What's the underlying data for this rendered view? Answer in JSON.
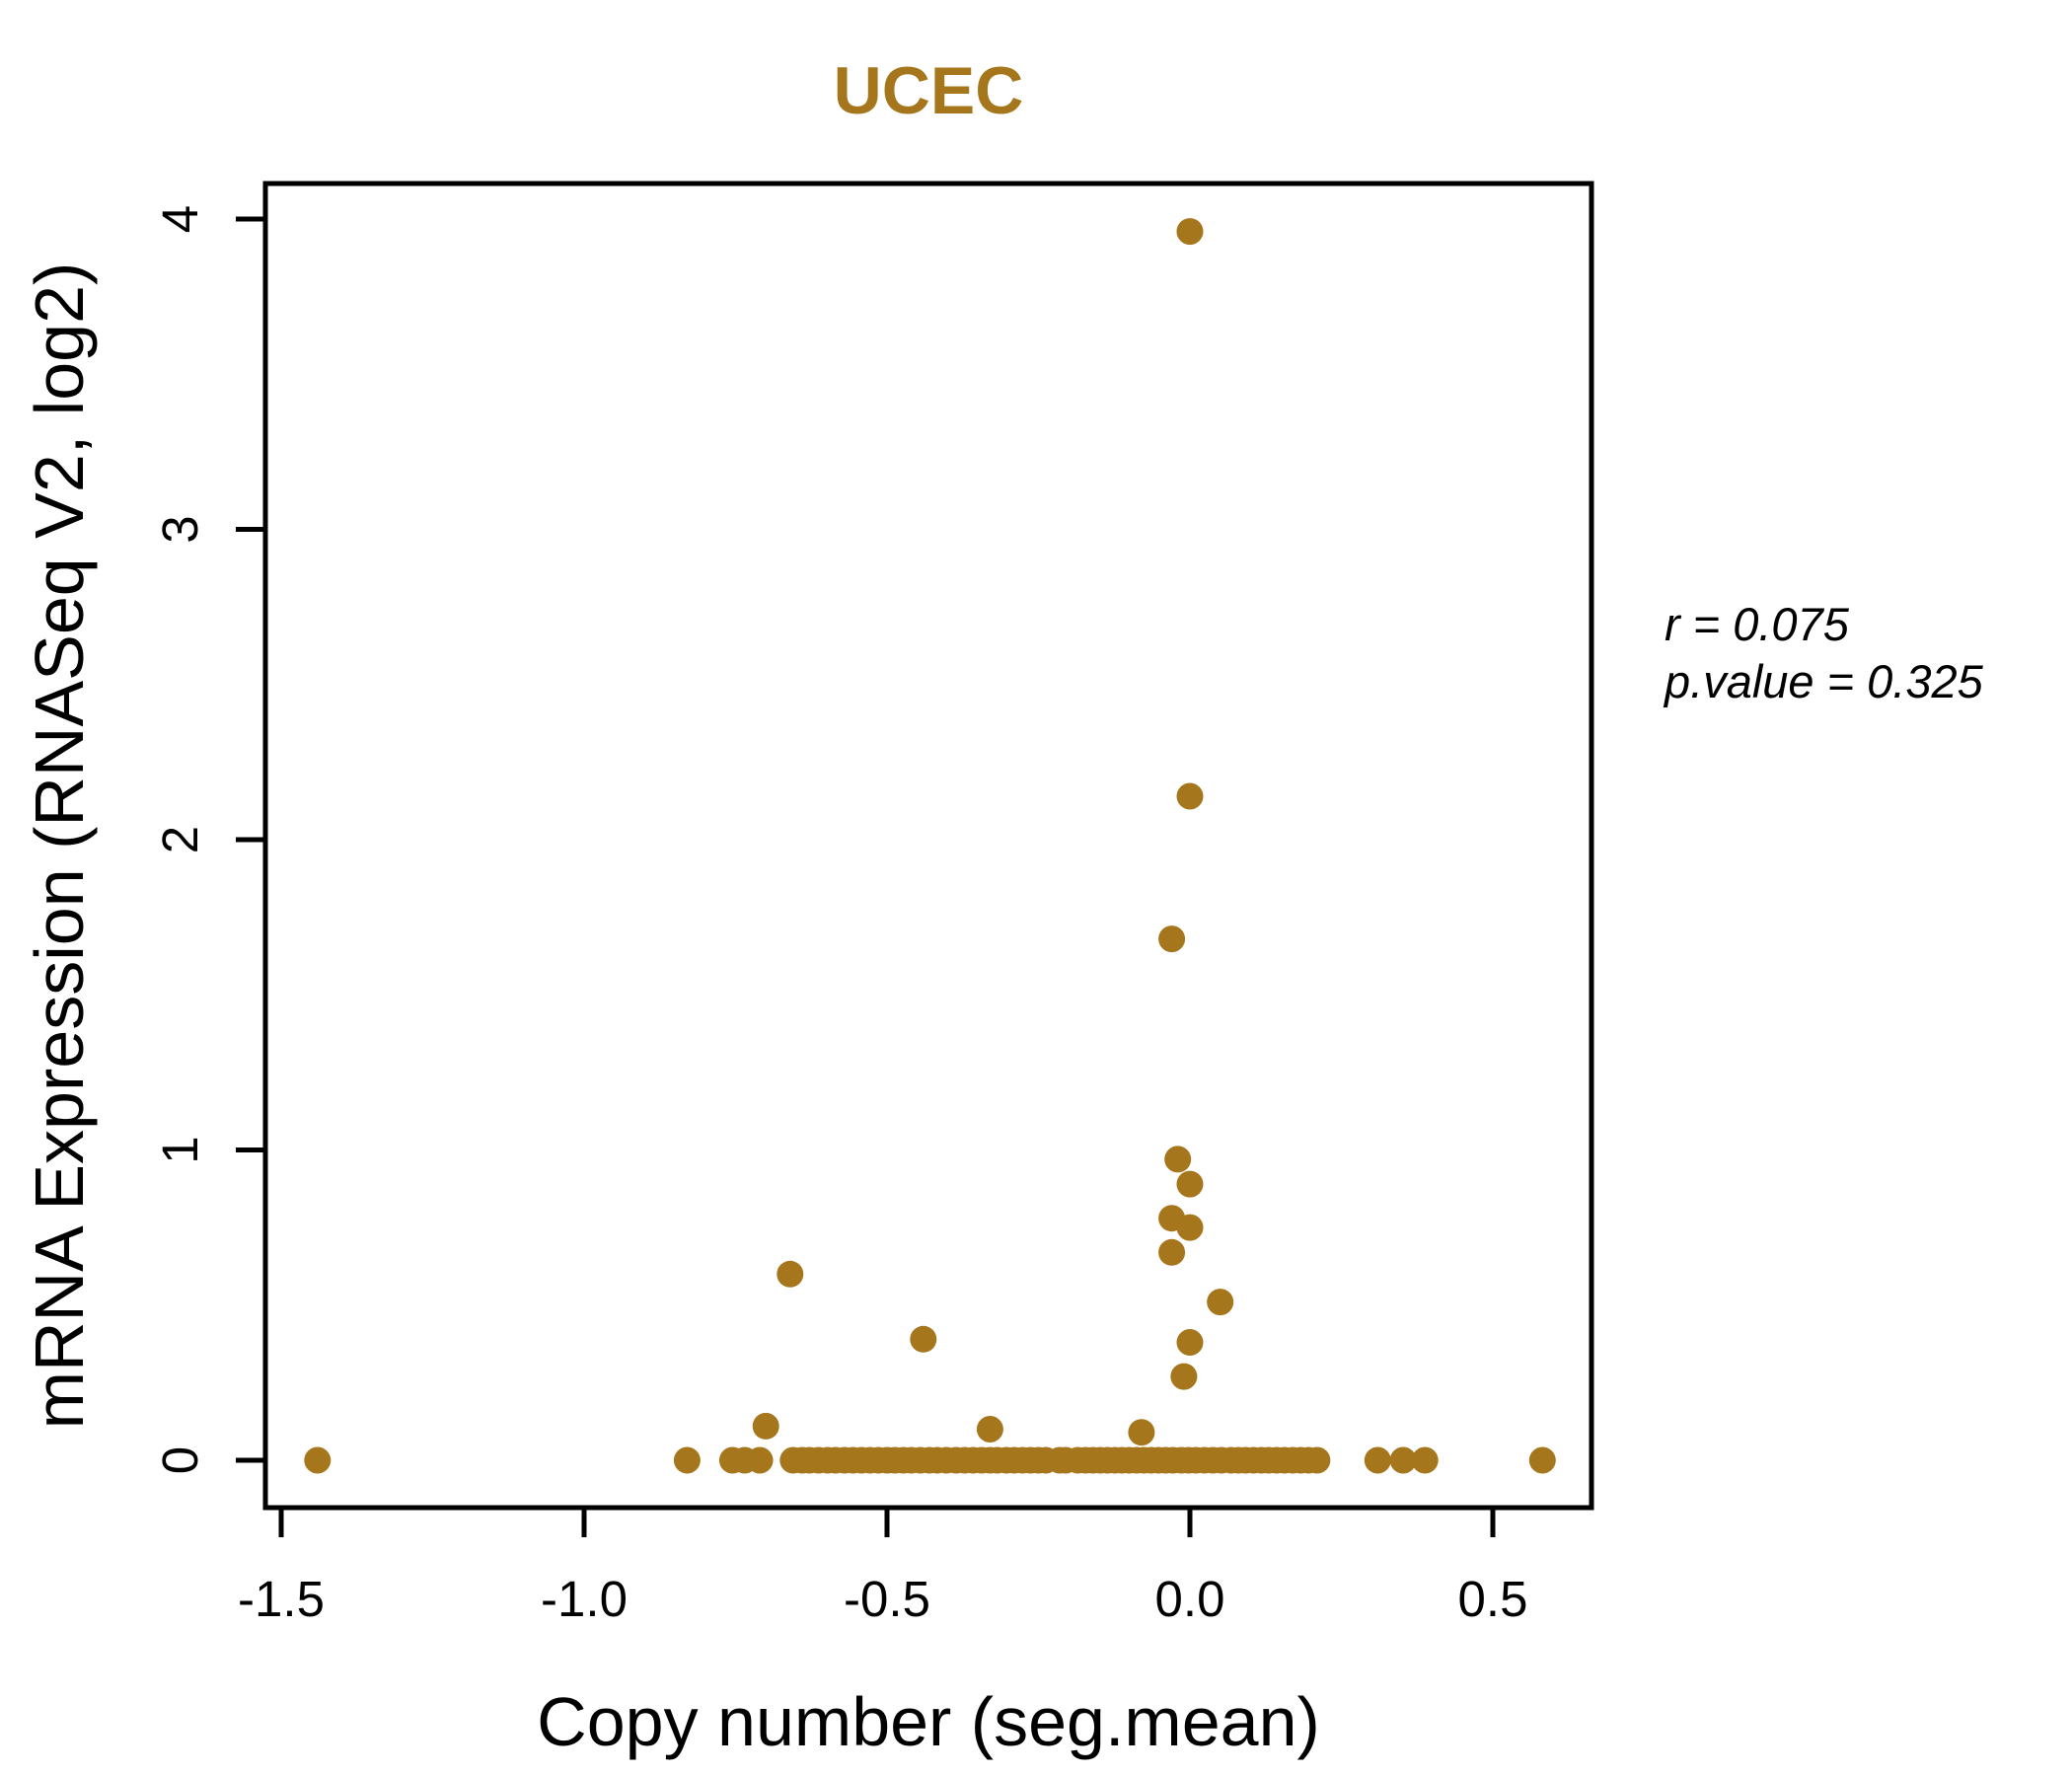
{
  "title": "UCEC",
  "colors": {
    "accent": "#A6761D",
    "point": "#A6761D",
    "axis": "#000000",
    "background": "#ffffff"
  },
  "stats": {
    "r_label": "r = 0.075",
    "p_label": "p.value = 0.325"
  },
  "chart_data": {
    "type": "scatter",
    "title": "UCEC",
    "xlabel": "Copy number (seg.mean)",
    "ylabel": "mRNA Expression (RNASeq V2, log2)",
    "xlim": [
      -1.53,
      0.66
    ],
    "ylim": [
      -0.15,
      4.12
    ],
    "grid": false,
    "legend": "none",
    "x_ticks": [
      -1.5,
      -1.0,
      -0.5,
      0.0,
      0.5
    ],
    "x_tick_labels": [
      "-1.5",
      "-1.0",
      "-0.5",
      "0.0",
      "0.5"
    ],
    "y_ticks": [
      0,
      1,
      2,
      3,
      4
    ],
    "y_tick_labels": [
      "0",
      "1",
      "2",
      "3",
      "4"
    ],
    "annotations": [
      "r = 0.075",
      "p.value = 0.325"
    ],
    "correlation_r": 0.075,
    "p_value": 0.325,
    "points": [
      [
        0.0,
        3.96
      ],
      [
        0.0,
        2.14
      ],
      [
        -0.03,
        1.68
      ],
      [
        -0.02,
        0.97
      ],
      [
        0.0,
        0.89
      ],
      [
        -0.03,
        0.78
      ],
      [
        0.0,
        0.75
      ],
      [
        -0.03,
        0.67
      ],
      [
        -0.66,
        0.6
      ],
      [
        0.05,
        0.51
      ],
      [
        -0.44,
        0.39
      ],
      [
        0.0,
        0.38
      ],
      [
        -0.01,
        0.27
      ],
      [
        -0.7,
        0.11
      ],
      [
        -0.33,
        0.1
      ],
      [
        -0.08,
        0.09
      ],
      [
        -1.44,
        0
      ],
      [
        -0.83,
        0
      ],
      [
        -0.755,
        0
      ],
      [
        -0.735,
        0
      ],
      [
        -0.71,
        0
      ],
      [
        -0.655,
        0
      ],
      [
        -0.64,
        0
      ],
      [
        -0.628,
        0
      ],
      [
        -0.613,
        0
      ],
      [
        -0.598,
        0
      ],
      [
        -0.585,
        0
      ],
      [
        -0.57,
        0
      ],
      [
        -0.556,
        0
      ],
      [
        -0.542,
        0
      ],
      [
        -0.528,
        0
      ],
      [
        -0.514,
        0
      ],
      [
        -0.5,
        0
      ],
      [
        -0.487,
        0
      ],
      [
        -0.473,
        0
      ],
      [
        -0.46,
        0
      ],
      [
        -0.445,
        0
      ],
      [
        -0.43,
        0
      ],
      [
        -0.417,
        0
      ],
      [
        -0.402,
        0
      ],
      [
        -0.386,
        0
      ],
      [
        -0.372,
        0
      ],
      [
        -0.358,
        0
      ],
      [
        -0.344,
        0
      ],
      [
        -0.33,
        0
      ],
      [
        -0.318,
        0
      ],
      [
        -0.303,
        0
      ],
      [
        -0.29,
        0
      ],
      [
        -0.276,
        0
      ],
      [
        -0.263,
        0
      ],
      [
        -0.25,
        0
      ],
      [
        -0.238,
        0
      ],
      [
        -0.215,
        0
      ],
      [
        -0.205,
        0
      ],
      [
        -0.185,
        0
      ],
      [
        -0.172,
        0
      ],
      [
        -0.16,
        0
      ],
      [
        -0.148,
        0
      ],
      [
        -0.136,
        0
      ],
      [
        -0.124,
        0
      ],
      [
        -0.112,
        0
      ],
      [
        -0.1,
        0
      ],
      [
        -0.088,
        0
      ],
      [
        -0.076,
        0
      ],
      [
        -0.064,
        0
      ],
      [
        -0.052,
        0
      ],
      [
        -0.04,
        0
      ],
      [
        -0.028,
        0
      ],
      [
        -0.014,
        0
      ],
      [
        -0.002,
        0
      ],
      [
        0.01,
        0
      ],
      [
        0.024,
        0
      ],
      [
        0.038,
        0
      ],
      [
        0.052,
        0
      ],
      [
        0.068,
        0
      ],
      [
        0.08,
        0
      ],
      [
        0.092,
        0
      ],
      [
        0.105,
        0
      ],
      [
        0.118,
        0
      ],
      [
        0.13,
        0
      ],
      [
        0.143,
        0
      ],
      [
        0.156,
        0
      ],
      [
        0.17,
        0
      ],
      [
        0.183,
        0
      ],
      [
        0.196,
        0
      ],
      [
        0.21,
        0
      ],
      [
        0.31,
        0
      ],
      [
        0.352,
        0
      ],
      [
        0.388,
        0
      ],
      [
        0.582,
        0
      ]
    ]
  }
}
